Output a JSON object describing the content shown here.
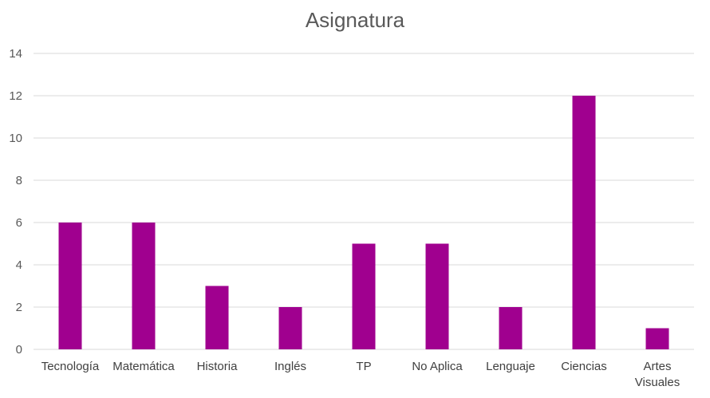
{
  "chart_data": {
    "type": "bar",
    "title": "Asignatura",
    "xlabel": "",
    "ylabel": "",
    "categories": [
      "Tecnología",
      "Matemática",
      "Historia",
      "Inglés",
      "TP",
      "No Aplica",
      "Lenguaje",
      "Ciencias",
      "Artes Visuales"
    ],
    "values": [
      6,
      6,
      3,
      2,
      5,
      5,
      2,
      12,
      1
    ],
    "ylim": [
      0,
      14
    ],
    "yticks": [
      0,
      2,
      4,
      6,
      8,
      10,
      12,
      14
    ],
    "grid": true,
    "legend": "none",
    "bar_color": "#a0008f",
    "grid_color": "#d9d9d9"
  }
}
